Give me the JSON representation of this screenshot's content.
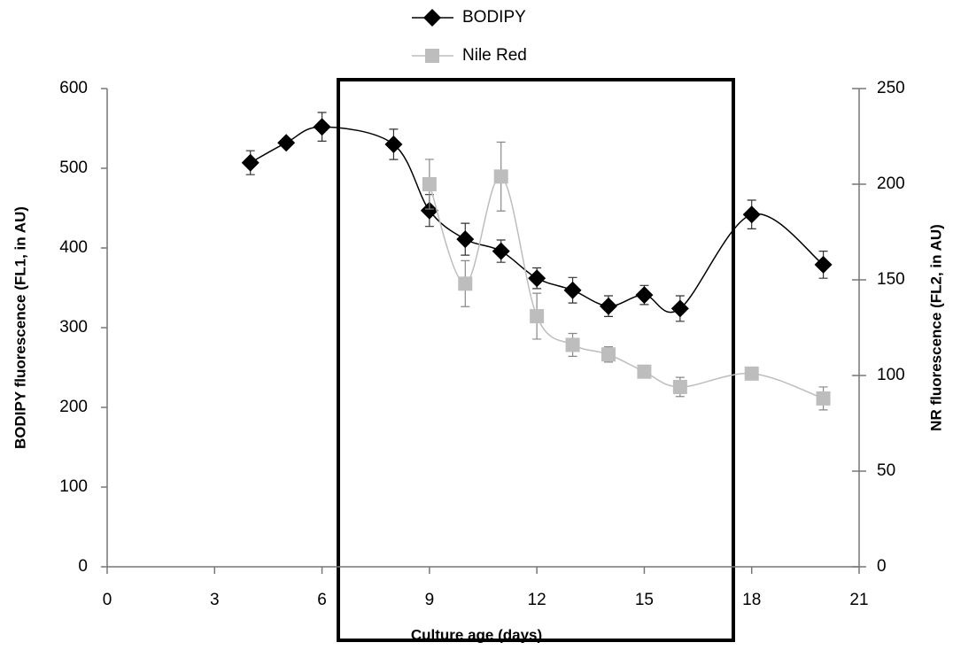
{
  "chart_data": {
    "type": "line",
    "xlabel": "Culture age (days)",
    "ylabel": "BODIPY fluorescence (FL1, in AU)",
    "y2label": "NR fluorescence (FL2, in AU)",
    "xlim": [
      0,
      21
    ],
    "xticks": [
      0,
      3,
      6,
      9,
      12,
      15,
      18,
      21
    ],
    "ylim": [
      0,
      600
    ],
    "yticks": [
      0,
      100,
      200,
      300,
      400,
      500,
      600
    ],
    "y2lim": [
      0,
      250
    ],
    "y2ticks": [
      0,
      50,
      100,
      150,
      200,
      250
    ],
    "legend": "top",
    "series": [
      {
        "name": "BODIPY",
        "color": "#000000",
        "marker": "diamond",
        "x": [
          4,
          5,
          6,
          8,
          9,
          10,
          11,
          12,
          13,
          14,
          15,
          16,
          18,
          20
        ],
        "values": [
          507,
          532,
          552,
          530,
          447,
          411,
          396,
          362,
          347,
          327,
          341,
          324,
          442,
          379
        ],
        "errors": [
          15,
          5,
          18,
          19,
          20,
          20,
          14,
          13,
          16,
          13,
          12,
          16,
          18,
          17
        ]
      },
      {
        "name": "Nile Red",
        "color": "#bdbdbd",
        "marker": "square",
        "axis": "y2",
        "x": [
          9,
          10,
          11,
          12,
          13,
          14,
          15,
          16,
          18,
          20
        ],
        "values": [
          200,
          148,
          204,
          131,
          116,
          111,
          102,
          94,
          101,
          88
        ],
        "errors": [
          13,
          12,
          18,
          12,
          6,
          4,
          2,
          5,
          2,
          6
        ]
      }
    ]
  }
}
